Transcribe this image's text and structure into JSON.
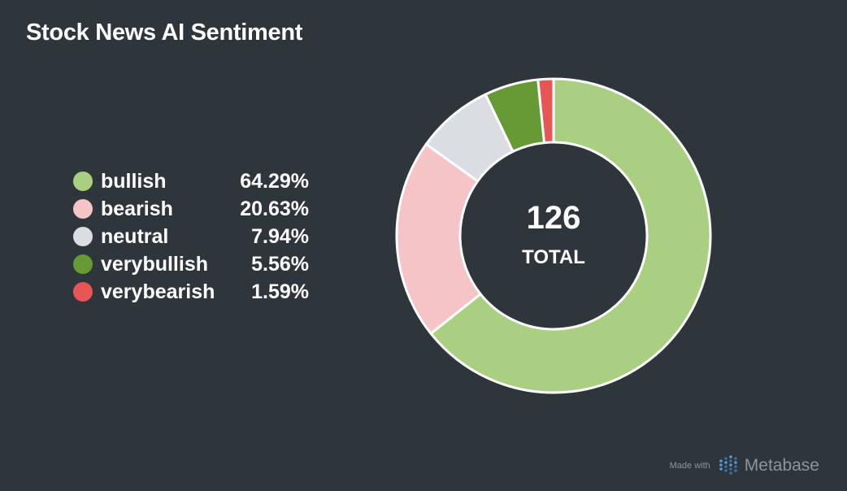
{
  "title": "Stock News AI Sentiment",
  "chart_data": {
    "type": "pie",
    "title": "Stock News AI Sentiment",
    "categories": [
      "bullish",
      "bearish",
      "neutral",
      "verybullish",
      "verybearish"
    ],
    "percent_labels": [
      "64.29%",
      "20.63%",
      "7.94%",
      "5.56%",
      "1.59%"
    ],
    "values": [
      81,
      26,
      10,
      7,
      2
    ],
    "colors": [
      "#a8d080",
      "#f5c4c7",
      "#dadee2",
      "#659a35",
      "#e85555"
    ],
    "total": "126",
    "total_label": "TOTAL",
    "legend_placement": "left"
  },
  "footer": {
    "made_with": "Made with",
    "brand": "Metabase"
  }
}
